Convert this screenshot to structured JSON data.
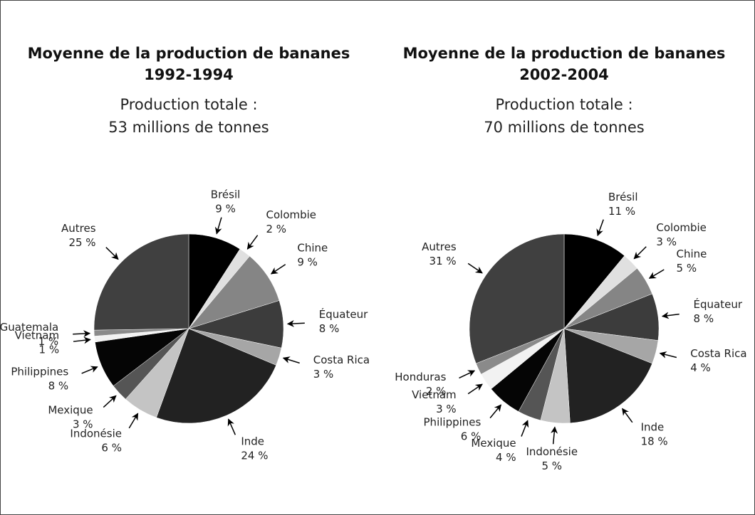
{
  "chart_data": [
    {
      "type": "pie",
      "title": "Moyenne de la production de bananes",
      "period": "1992-1994",
      "subtitle": "Production totale :",
      "total": "53 millions de tonnes",
      "categories": [
        "Brésil",
        "Colombie",
        "Chine",
        "Équateur",
        "Costa Rica",
        "Inde",
        "Indonésie",
        "Mexique",
        "Philippines",
        "Vietnam",
        "Guatemala",
        "Autres"
      ],
      "values": [
        9,
        2,
        9,
        8,
        3,
        24,
        6,
        3,
        8,
        1,
        1,
        25
      ],
      "value_labels": [
        "9 %",
        "2 %",
        "9 %",
        "8 %",
        "3 %",
        "24 %",
        "6 %",
        "3 %",
        "8 %",
        "1 %",
        "1 %",
        "25 %"
      ],
      "colors": [
        "#000000",
        "#e0e0e0",
        "#858585",
        "#3c3c3c",
        "#a6a6a6",
        "#222222",
        "#c4c4c4",
        "#555555",
        "#050505",
        "#f2f2f2",
        "#8a8a8a",
        "#404040"
      ]
    },
    {
      "type": "pie",
      "title": "Moyenne de la production de bananes",
      "period": "2002-2004",
      "subtitle": "Production totale :",
      "total": "70 millions de tonnes",
      "categories": [
        "Brésil",
        "Colombie",
        "Chine",
        "Équateur",
        "Costa Rica",
        "Inde",
        "Indonésie",
        "Mexique",
        "Philippines",
        "Vietnam",
        "Honduras",
        "Autres"
      ],
      "values": [
        11,
        3,
        5,
        8,
        4,
        18,
        5,
        4,
        6,
        3,
        2,
        31
      ],
      "value_labels": [
        "11 %",
        "3 %",
        "5 %",
        "8 %",
        "4 %",
        "18 %",
        "5 %",
        "4 %",
        "6 %",
        "3 %",
        "2 %",
        "31 %"
      ],
      "colors": [
        "#000000",
        "#e0e0e0",
        "#858585",
        "#3c3c3c",
        "#a6a6a6",
        "#222222",
        "#c4c4c4",
        "#555555",
        "#050505",
        "#f2f2f2",
        "#8a8a8a",
        "#404040"
      ]
    }
  ]
}
